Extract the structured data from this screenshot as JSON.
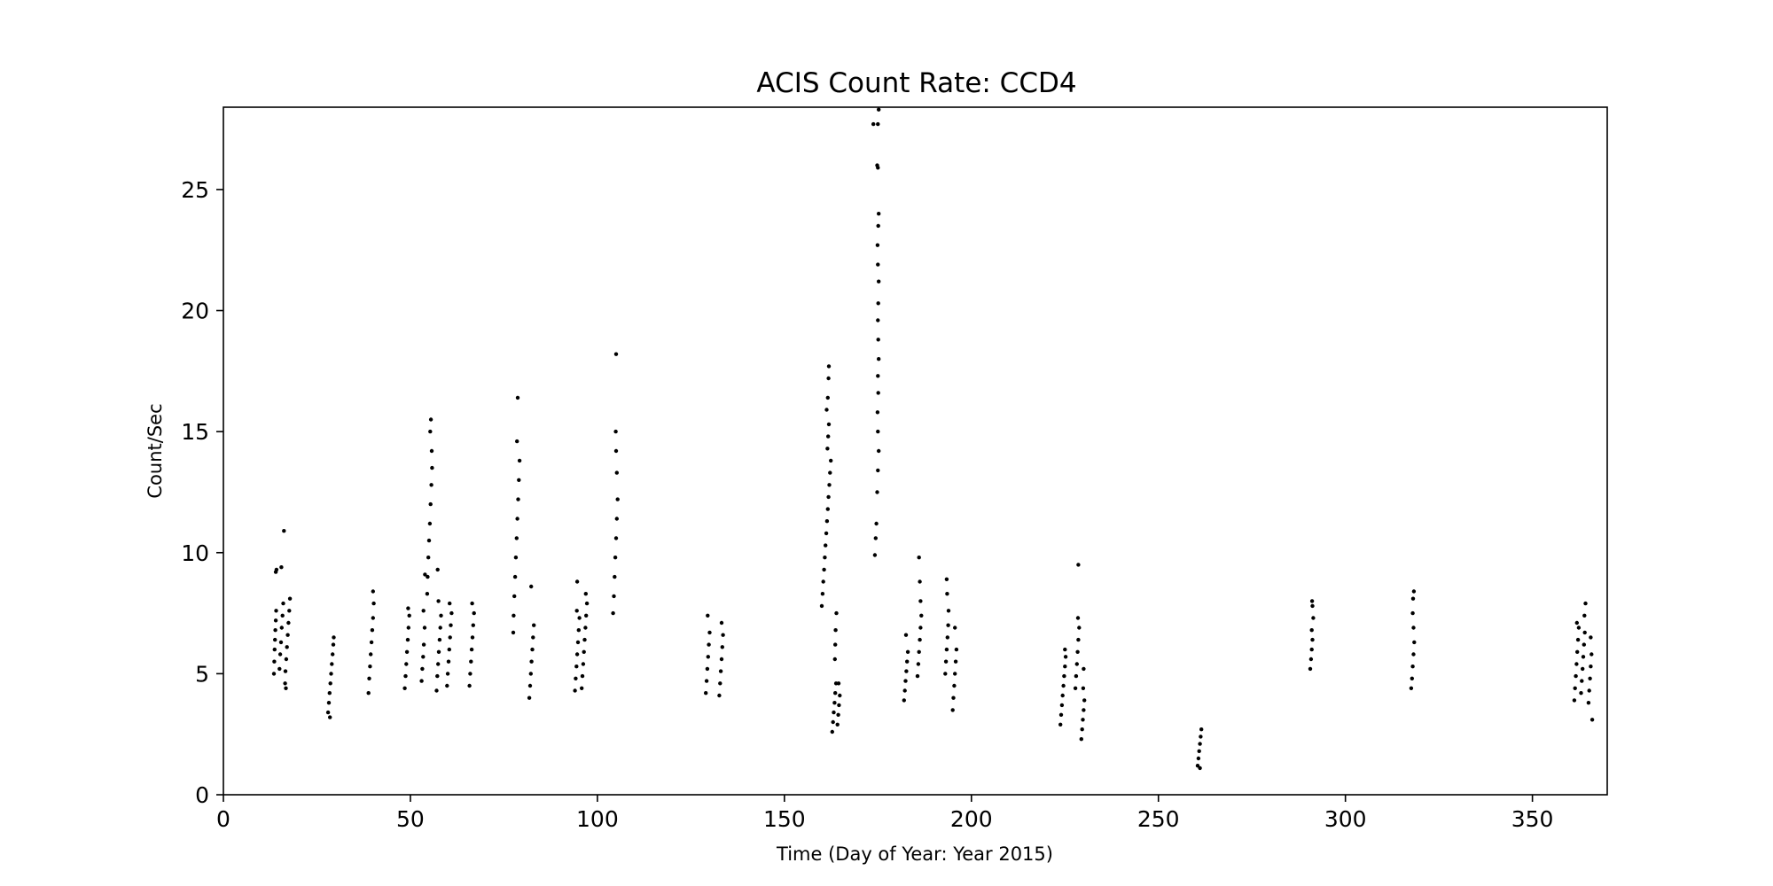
{
  "chart_data": {
    "type": "scatter",
    "title": "ACIS Count Rate: CCD4",
    "xlabel": "Time (Day of Year: Year 2015)",
    "ylabel": "Count/Sec",
    "xlim": [
      0,
      370
    ],
    "ylim": [
      0,
      28.4
    ],
    "xticks": [
      0,
      50,
      100,
      150,
      200,
      250,
      300,
      350
    ],
    "yticks": [
      0,
      5,
      10,
      15,
      20,
      25
    ],
    "grid": false,
    "marker_color": "#000000",
    "series": [
      {
        "points": [
          [
            13.5,
            5.0
          ],
          [
            13.6,
            5.5
          ],
          [
            13.7,
            6.0
          ],
          [
            13.8,
            6.4
          ],
          [
            13.9,
            6.8
          ],
          [
            14.0,
            7.2
          ],
          [
            14.1,
            7.6
          ],
          [
            14.0,
            9.2
          ],
          [
            14.2,
            9.3
          ],
          [
            15.0,
            5.2
          ],
          [
            15.2,
            5.8
          ],
          [
            15.4,
            6.3
          ],
          [
            15.6,
            6.9
          ],
          [
            15.8,
            7.4
          ],
          [
            16.0,
            7.9
          ],
          [
            16.2,
            10.9
          ],
          [
            15.5,
            9.4
          ],
          [
            16.5,
            4.6
          ],
          [
            16.6,
            5.1
          ],
          [
            16.8,
            5.6
          ],
          [
            17.0,
            6.1
          ],
          [
            17.2,
            6.6
          ],
          [
            17.4,
            7.1
          ],
          [
            17.6,
            7.6
          ],
          [
            17.8,
            8.1
          ],
          [
            16.7,
            4.4
          ],
          [
            28.0,
            3.4
          ],
          [
            28.2,
            3.8
          ],
          [
            28.4,
            4.2
          ],
          [
            28.6,
            4.6
          ],
          [
            28.8,
            5.0
          ],
          [
            29.0,
            5.4
          ],
          [
            29.2,
            5.8
          ],
          [
            29.4,
            6.2
          ],
          [
            29.5,
            6.5
          ],
          [
            28.5,
            3.2
          ],
          [
            38.8,
            4.2
          ],
          [
            39.0,
            4.8
          ],
          [
            39.2,
            5.3
          ],
          [
            39.4,
            5.8
          ],
          [
            39.6,
            6.3
          ],
          [
            39.8,
            6.8
          ],
          [
            40.0,
            7.3
          ],
          [
            40.2,
            7.9
          ],
          [
            40.0,
            8.4
          ],
          [
            48.5,
            4.4
          ],
          [
            48.7,
            4.9
          ],
          [
            48.9,
            5.4
          ],
          [
            49.1,
            5.9
          ],
          [
            49.3,
            6.4
          ],
          [
            49.5,
            6.9
          ],
          [
            49.7,
            7.4
          ],
          [
            49.4,
            7.7
          ],
          [
            53.0,
            4.7
          ],
          [
            53.2,
            5.2
          ],
          [
            53.4,
            5.7
          ],
          [
            53.6,
            6.2
          ],
          [
            53.8,
            6.9
          ],
          [
            53.5,
            7.6
          ],
          [
            53.9,
            9.1
          ],
          [
            54.5,
            8.3
          ],
          [
            54.6,
            9.0
          ],
          [
            54.8,
            9.8
          ],
          [
            55.0,
            10.5
          ],
          [
            55.2,
            11.2
          ],
          [
            55.4,
            12.0
          ],
          [
            55.6,
            12.8
          ],
          [
            55.8,
            13.5
          ],
          [
            55.7,
            14.2
          ],
          [
            55.3,
            15.0
          ],
          [
            55.5,
            15.5
          ],
          [
            57.0,
            4.3
          ],
          [
            57.2,
            4.9
          ],
          [
            57.4,
            5.4
          ],
          [
            57.6,
            5.9
          ],
          [
            57.8,
            6.4
          ],
          [
            58.0,
            6.9
          ],
          [
            58.2,
            7.4
          ],
          [
            57.3,
            9.3
          ],
          [
            57.5,
            8.0
          ],
          [
            59.8,
            4.5
          ],
          [
            60.0,
            5.0
          ],
          [
            60.2,
            5.5
          ],
          [
            60.4,
            6.0
          ],
          [
            60.6,
            6.5
          ],
          [
            60.8,
            7.0
          ],
          [
            61.0,
            7.5
          ],
          [
            60.5,
            7.9
          ],
          [
            65.8,
            4.5
          ],
          [
            66.0,
            5.0
          ],
          [
            66.2,
            5.5
          ],
          [
            66.4,
            6.0
          ],
          [
            66.6,
            6.5
          ],
          [
            66.8,
            7.0
          ],
          [
            67.0,
            7.5
          ],
          [
            66.5,
            7.9
          ],
          [
            77.5,
            6.7
          ],
          [
            77.6,
            7.4
          ],
          [
            77.8,
            8.2
          ],
          [
            78.0,
            9.0
          ],
          [
            78.2,
            9.8
          ],
          [
            78.4,
            10.6
          ],
          [
            78.6,
            11.4
          ],
          [
            78.8,
            12.2
          ],
          [
            79.0,
            13.0
          ],
          [
            79.2,
            13.8
          ],
          [
            78.5,
            14.6
          ],
          [
            78.7,
            16.4
          ],
          [
            81.8,
            4.0
          ],
          [
            82.0,
            4.5
          ],
          [
            82.2,
            5.0
          ],
          [
            82.4,
            5.5
          ],
          [
            82.6,
            6.0
          ],
          [
            82.8,
            6.5
          ],
          [
            83.0,
            7.0
          ],
          [
            82.3,
            8.6
          ],
          [
            94.0,
            4.3
          ],
          [
            94.2,
            4.8
          ],
          [
            94.4,
            5.3
          ],
          [
            94.6,
            5.8
          ],
          [
            94.8,
            6.3
          ],
          [
            95.0,
            6.8
          ],
          [
            95.2,
            7.3
          ],
          [
            94.5,
            7.6
          ],
          [
            94.6,
            8.8
          ],
          [
            95.8,
            4.4
          ],
          [
            96.0,
            4.9
          ],
          [
            96.2,
            5.4
          ],
          [
            96.4,
            5.9
          ],
          [
            96.6,
            6.4
          ],
          [
            96.8,
            6.9
          ],
          [
            97.0,
            7.4
          ],
          [
            97.2,
            7.9
          ],
          [
            96.9,
            8.3
          ],
          [
            104.2,
            7.5
          ],
          [
            104.4,
            8.2
          ],
          [
            104.6,
            9.0
          ],
          [
            104.8,
            9.8
          ],
          [
            105.0,
            10.6
          ],
          [
            105.2,
            11.4
          ],
          [
            105.4,
            12.2
          ],
          [
            105.2,
            13.3
          ],
          [
            105.0,
            14.2
          ],
          [
            104.9,
            15.0
          ],
          [
            105.0,
            18.2
          ],
          [
            129.0,
            4.2
          ],
          [
            129.2,
            4.7
          ],
          [
            129.4,
            5.2
          ],
          [
            129.6,
            5.7
          ],
          [
            129.8,
            6.2
          ],
          [
            130.0,
            6.7
          ],
          [
            129.5,
            7.4
          ],
          [
            132.6,
            4.1
          ],
          [
            132.8,
            4.6
          ],
          [
            133.0,
            5.1
          ],
          [
            133.2,
            5.6
          ],
          [
            133.4,
            6.1
          ],
          [
            133.6,
            6.6
          ],
          [
            133.2,
            7.1
          ],
          [
            160.0,
            7.8
          ],
          [
            160.2,
            8.3
          ],
          [
            160.4,
            8.8
          ],
          [
            160.6,
            9.3
          ],
          [
            160.8,
            9.8
          ],
          [
            161.0,
            10.3
          ],
          [
            161.2,
            10.8
          ],
          [
            161.4,
            11.3
          ],
          [
            161.6,
            11.8
          ],
          [
            161.8,
            12.3
          ],
          [
            162.0,
            12.8
          ],
          [
            162.2,
            13.3
          ],
          [
            162.4,
            13.8
          ],
          [
            161.5,
            14.3
          ],
          [
            161.7,
            14.8
          ],
          [
            161.9,
            15.3
          ],
          [
            161.3,
            15.9
          ],
          [
            161.6,
            16.4
          ],
          [
            161.8,
            17.2
          ],
          [
            161.9,
            17.7
          ],
          [
            162.8,
            2.6
          ],
          [
            163.0,
            3.0
          ],
          [
            163.2,
            3.4
          ],
          [
            163.4,
            3.8
          ],
          [
            163.6,
            4.2
          ],
          [
            163.8,
            4.6
          ],
          [
            163.5,
            5.6
          ],
          [
            163.6,
            6.2
          ],
          [
            163.7,
            6.8
          ],
          [
            163.9,
            7.5
          ],
          [
            164.2,
            2.9
          ],
          [
            164.4,
            3.3
          ],
          [
            164.6,
            3.7
          ],
          [
            164.8,
            4.1
          ],
          [
            164.5,
            4.6
          ],
          [
            174.2,
            9.9
          ],
          [
            174.4,
            10.6
          ],
          [
            174.6,
            11.2
          ],
          [
            174.8,
            12.5
          ],
          [
            175.0,
            13.4
          ],
          [
            175.2,
            14.2
          ],
          [
            175.0,
            15.0
          ],
          [
            174.9,
            15.8
          ],
          [
            175.1,
            16.6
          ],
          [
            175.0,
            17.3
          ],
          [
            175.2,
            18.0
          ],
          [
            175.1,
            18.8
          ],
          [
            175.0,
            19.6
          ],
          [
            175.1,
            20.3
          ],
          [
            175.2,
            21.2
          ],
          [
            175.0,
            21.9
          ],
          [
            174.9,
            22.7
          ],
          [
            175.1,
            23.5
          ],
          [
            175.2,
            24.0
          ],
          [
            175.0,
            25.9
          ],
          [
            174.8,
            26.0
          ],
          [
            173.8,
            27.7
          ],
          [
            175.0,
            27.7
          ],
          [
            175.2,
            28.3
          ],
          [
            182.0,
            3.9
          ],
          [
            182.2,
            4.3
          ],
          [
            182.4,
            4.7
          ],
          [
            182.6,
            5.1
          ],
          [
            182.8,
            5.5
          ],
          [
            183.0,
            5.9
          ],
          [
            182.5,
            6.6
          ],
          [
            185.6,
            4.9
          ],
          [
            185.8,
            5.4
          ],
          [
            186.0,
            5.9
          ],
          [
            186.2,
            6.4
          ],
          [
            186.4,
            6.9
          ],
          [
            186.6,
            7.4
          ],
          [
            186.4,
            8.0
          ],
          [
            186.2,
            8.8
          ],
          [
            186.0,
            9.8
          ],
          [
            193.0,
            5.0
          ],
          [
            193.2,
            5.5
          ],
          [
            193.4,
            6.0
          ],
          [
            193.6,
            6.5
          ],
          [
            193.8,
            7.0
          ],
          [
            193.9,
            7.6
          ],
          [
            193.5,
            8.3
          ],
          [
            193.4,
            8.9
          ],
          [
            195.0,
            3.5
          ],
          [
            195.2,
            4.0
          ],
          [
            195.4,
            4.5
          ],
          [
            195.6,
            5.0
          ],
          [
            195.8,
            5.5
          ],
          [
            196.0,
            6.0
          ],
          [
            195.6,
            6.9
          ],
          [
            223.8,
            2.9
          ],
          [
            224.0,
            3.3
          ],
          [
            224.2,
            3.7
          ],
          [
            224.4,
            4.1
          ],
          [
            224.6,
            4.5
          ],
          [
            224.8,
            4.9
          ],
          [
            225.0,
            5.3
          ],
          [
            225.2,
            5.7
          ],
          [
            225.0,
            6.0
          ],
          [
            227.8,
            4.4
          ],
          [
            228.0,
            4.9
          ],
          [
            228.2,
            5.4
          ],
          [
            228.4,
            5.9
          ],
          [
            228.6,
            6.4
          ],
          [
            228.8,
            6.9
          ],
          [
            228.5,
            7.3
          ],
          [
            228.6,
            9.5
          ],
          [
            229.4,
            2.3
          ],
          [
            229.6,
            2.7
          ],
          [
            229.8,
            3.1
          ],
          [
            230.0,
            3.5
          ],
          [
            230.2,
            3.9
          ],
          [
            229.9,
            4.4
          ],
          [
            230.0,
            5.2
          ],
          [
            260.5,
            1.2
          ],
          [
            260.7,
            1.5
          ],
          [
            260.9,
            1.8
          ],
          [
            261.1,
            2.1
          ],
          [
            261.3,
            2.4
          ],
          [
            261.5,
            2.7
          ],
          [
            261.1,
            1.1
          ],
          [
            290.6,
            5.2
          ],
          [
            290.8,
            5.6
          ],
          [
            291.0,
            6.0
          ],
          [
            291.2,
            6.4
          ],
          [
            291.0,
            6.8
          ],
          [
            291.4,
            7.3
          ],
          [
            291.2,
            7.8
          ],
          [
            291.1,
            8.0
          ],
          [
            317.6,
            4.4
          ],
          [
            317.8,
            4.8
          ],
          [
            318.0,
            5.3
          ],
          [
            318.2,
            5.8
          ],
          [
            318.4,
            6.3
          ],
          [
            318.2,
            6.9
          ],
          [
            318.0,
            7.5
          ],
          [
            318.1,
            8.1
          ],
          [
            318.3,
            8.4
          ],
          [
            361.2,
            3.9
          ],
          [
            361.4,
            4.4
          ],
          [
            361.6,
            4.9
          ],
          [
            361.8,
            5.4
          ],
          [
            362.0,
            5.9
          ],
          [
            362.2,
            6.4
          ],
          [
            362.4,
            6.9
          ],
          [
            361.9,
            7.1
          ],
          [
            363.0,
            4.2
          ],
          [
            363.2,
            4.7
          ],
          [
            363.4,
            5.2
          ],
          [
            363.6,
            5.7
          ],
          [
            363.8,
            6.2
          ],
          [
            364.0,
            6.7
          ],
          [
            363.9,
            7.4
          ],
          [
            364.2,
            7.9
          ],
          [
            365.0,
            3.8
          ],
          [
            365.2,
            4.3
          ],
          [
            365.4,
            4.8
          ],
          [
            365.6,
            5.3
          ],
          [
            365.8,
            5.8
          ],
          [
            365.6,
            6.5
          ],
          [
            366.0,
            3.1
          ]
        ]
      }
    ]
  }
}
